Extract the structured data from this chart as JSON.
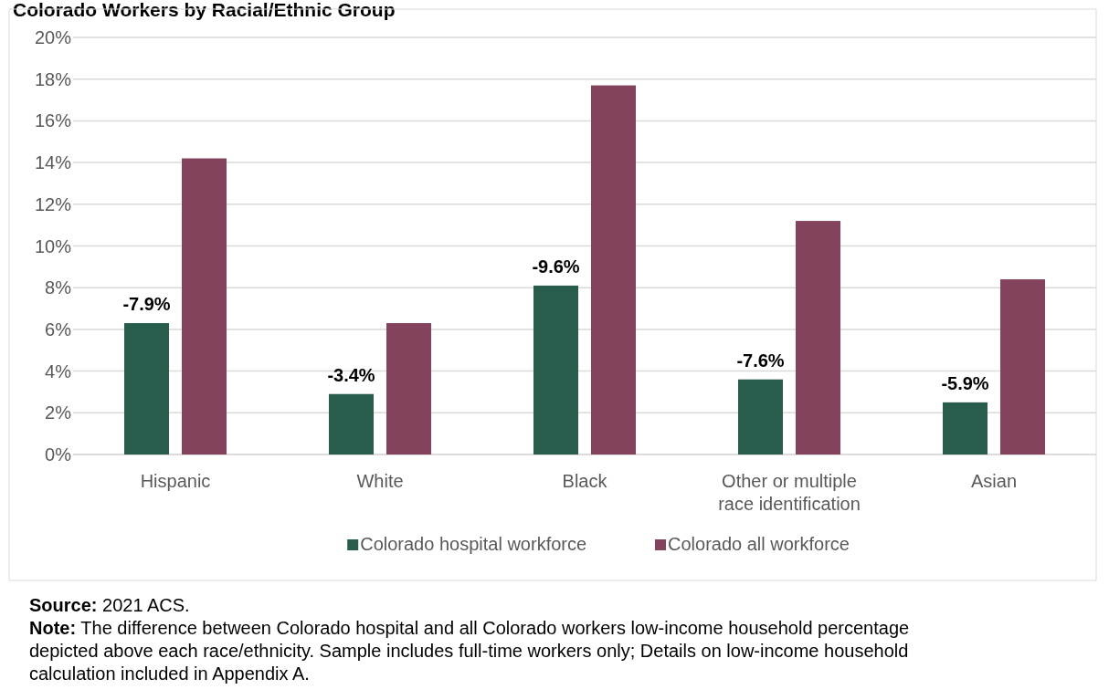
{
  "chart_data": {
    "type": "bar",
    "title": "Colorado Workers by Racial/Ethnic Group",
    "categories": [
      "Hispanic",
      "White",
      "Black",
      "Other or multiple race identification",
      "Asian"
    ],
    "series": [
      {
        "name": "Colorado hospital workforce",
        "color": "#285c4d",
        "values": [
          6.3,
          2.9,
          8.1,
          3.6,
          2.5
        ]
      },
      {
        "name": "Colorado all workforce",
        "color": "#83435d",
        "values": [
          14.2,
          6.3,
          17.7,
          11.2,
          8.4
        ]
      }
    ],
    "ylim": [
      0,
      20
    ],
    "yticks": [
      {
        "value": 0,
        "label": "0%"
      },
      {
        "value": 2,
        "label": "2%"
      },
      {
        "value": 4,
        "label": "4%"
      },
      {
        "value": 6,
        "label": "6%"
      },
      {
        "value": 8,
        "label": "8%"
      },
      {
        "value": 10,
        "label": "10%"
      },
      {
        "value": 12,
        "label": "12%"
      },
      {
        "value": 14,
        "label": "14%"
      },
      {
        "value": 16,
        "label": "16%"
      },
      {
        "value": 18,
        "label": "18%"
      },
      {
        "value": 20,
        "label": "20%"
      }
    ],
    "grid": "y",
    "legend": "bottom",
    "annotations": [
      "-7.9%",
      "-3.4%",
      "-9.6%",
      "-7.6%",
      "-5.9%",
      "Source: 2021 ACS.",
      "Note: The difference between Colorado hospital and all Colorado workers low-income household percentage depicted above each race/ethnicity. Sample includes full-time workers only; Details on low-income household calculation included in Appendix A."
    ]
  }
}
